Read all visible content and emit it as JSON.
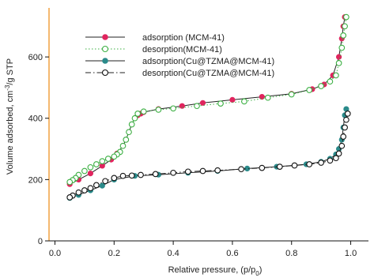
{
  "chart_data": {
    "type": "scatter",
    "title": "",
    "xlabel": "Relative pressure, (p/p",
    "xlabel_sub": "0",
    "xlabel_end": ")",
    "ylabel": "Volume adsorbed, cm",
    "ylabel_sup": "-3",
    "ylabel_end": "/g STP",
    "xlim": [
      -0.02,
      1.06
    ],
    "ylim": [
      0,
      760
    ],
    "xticks": [
      "0.0",
      "0.2",
      "0.4",
      "0.6",
      "0.8",
      "1.0"
    ],
    "xtick_values": [
      0,
      0.2,
      0.4,
      0.6,
      0.8,
      1.0
    ],
    "yticks": [
      "0",
      "200",
      "400",
      "600"
    ],
    "ytick_values": [
      0,
      200,
      400,
      600
    ],
    "grid": false,
    "legend_position": "top-left",
    "series": [
      {
        "name": "adsorption (MCM-41)",
        "line_style": "solid",
        "marker": "filled-circle",
        "color": "#e0245e",
        "x": [
          0.05,
          0.08,
          0.12,
          0.16,
          0.19,
          0.21,
          0.23,
          0.24,
          0.25,
          0.26,
          0.27,
          0.28,
          0.29,
          0.3,
          0.35,
          0.43,
          0.5,
          0.6,
          0.7,
          0.8,
          0.87,
          0.91,
          0.94,
          0.96,
          0.97,
          0.975,
          0.98
        ],
        "y": [
          185,
          200,
          220,
          245,
          265,
          285,
          310,
          330,
          355,
          380,
          400,
          410,
          415,
          420,
          430,
          440,
          450,
          460,
          470,
          480,
          495,
          510,
          540,
          600,
          660,
          700,
          730
        ]
      },
      {
        "name": "desorption(MCM-41)",
        "line_style": "dotted",
        "marker": "open-circle",
        "color": "#3cb043",
        "x": [
          0.985,
          0.98,
          0.975,
          0.97,
          0.96,
          0.95,
          0.93,
          0.9,
          0.86,
          0.8,
          0.72,
          0.64,
          0.56,
          0.48,
          0.4,
          0.35,
          0.3,
          0.28,
          0.27,
          0.26,
          0.25,
          0.24,
          0.23,
          0.22,
          0.21,
          0.2,
          0.18,
          0.16,
          0.14,
          0.12,
          0.1,
          0.08,
          0.07,
          0.06,
          0.05
        ],
        "y": [
          730,
          700,
          670,
          630,
          580,
          540,
          520,
          505,
          492,
          478,
          467,
          455,
          448,
          440,
          432,
          428,
          422,
          415,
          400,
          380,
          355,
          330,
          310,
          290,
          282,
          275,
          268,
          260,
          250,
          240,
          228,
          215,
          205,
          198,
          192
        ]
      },
      {
        "name": "adsorption(Cu@TZMA@MCM-41)",
        "line_style": "solid",
        "marker": "filled-circle",
        "color": "#2a8a8a",
        "x": [
          0.05,
          0.08,
          0.12,
          0.16,
          0.2,
          0.27,
          0.35,
          0.45,
          0.55,
          0.65,
          0.75,
          0.85,
          0.9,
          0.93,
          0.95,
          0.96,
          0.97,
          0.975,
          0.98,
          0.985
        ],
        "y": [
          140,
          150,
          165,
          180,
          200,
          212,
          216,
          222,
          228,
          236,
          242,
          250,
          258,
          268,
          282,
          300,
          330,
          370,
          410,
          430
        ]
      },
      {
        "name": "desorption(Cu@TZMA@MCM-41)",
        "line_style": "dashdot",
        "marker": "open-circle",
        "color": "#111111",
        "x": [
          0.99,
          0.985,
          0.98,
          0.975,
          0.97,
          0.96,
          0.95,
          0.93,
          0.9,
          0.86,
          0.81,
          0.76,
          0.7,
          0.63,
          0.55,
          0.5,
          0.45,
          0.4,
          0.34,
          0.29,
          0.26,
          0.23,
          0.2,
          0.17,
          0.14,
          0.12,
          0.1,
          0.08,
          0.06,
          0.05
        ],
        "y": [
          415,
          395,
          370,
          340,
          310,
          285,
          270,
          262,
          255,
          250,
          246,
          242,
          238,
          234,
          230,
          228,
          226,
          222,
          218,
          215,
          213,
          212,
          205,
          195,
          182,
          172,
          165,
          158,
          148,
          142
        ]
      }
    ]
  },
  "colors": {
    "y_axis": "#f0a040",
    "x_axis": "#111111"
  }
}
